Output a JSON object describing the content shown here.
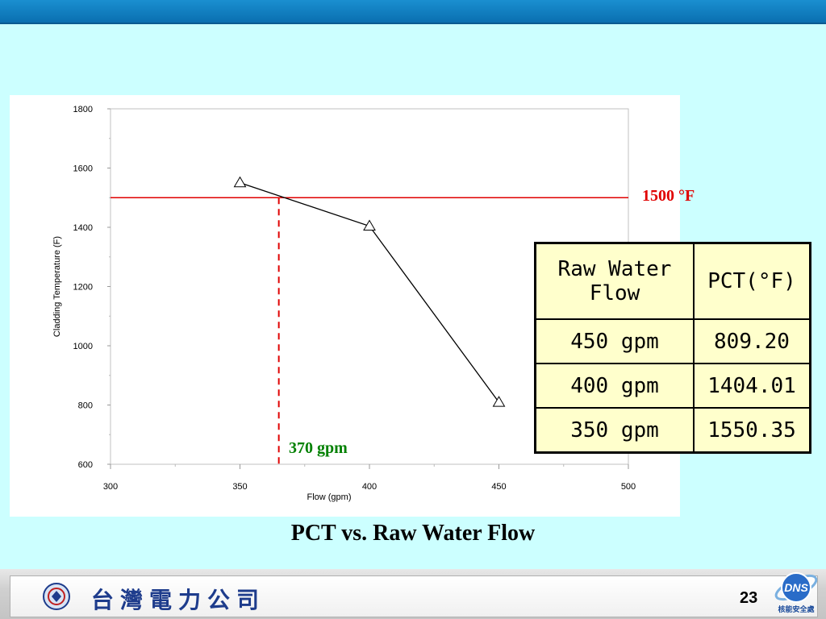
{
  "chart_data": {
    "type": "line",
    "title": "",
    "xlabel": "Flow (gpm)",
    "ylabel": "Cladding Temperature (F)",
    "xlim": [
      300,
      500
    ],
    "ylim": [
      600,
      1800
    ],
    "x_ticks": [
      "300",
      "350",
      "400",
      "450",
      "500"
    ],
    "y_ticks": [
      "600",
      "800",
      "1000",
      "1200",
      "1400",
      "1600",
      "1800"
    ],
    "series": [
      {
        "x": [
          350,
          400,
          450
        ],
        "values": [
          1550.35,
          1404.01,
          809.2
        ],
        "marker": "triangle",
        "color": "#000000"
      }
    ],
    "reference_lines": [
      {
        "axis": "y",
        "value": 1500,
        "label": "1500 °F",
        "color": "#e00000",
        "style": "solid"
      },
      {
        "axis": "x",
        "value": 365,
        "label": "370 gpm",
        "color": "#e00000",
        "label_color": "#008000",
        "style": "dashed"
      }
    ],
    "grid": false
  },
  "table": {
    "headers": [
      "Raw Water Flow",
      "PCT(°F)"
    ],
    "rows": [
      [
        "450 gpm",
        "809.20"
      ],
      [
        "400 gpm",
        "1404.01"
      ],
      [
        "350 gpm",
        "1550.35"
      ]
    ],
    "background": "#ffffcc"
  },
  "caption": "PCT vs. Raw Water Flow",
  "footer": {
    "company_name": "台灣電力公司",
    "page_number": "23",
    "badge_text": "DNS",
    "badge_subtitle": "核能安全處"
  },
  "colors": {
    "background": "#ccffff",
    "top_bar": "#0a78c0",
    "table_fill": "#ffffcc"
  }
}
